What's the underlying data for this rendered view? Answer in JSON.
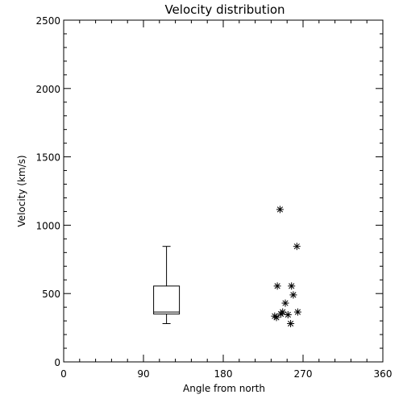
{
  "chart_data": {
    "type": "scatter",
    "title": "Velocity distribution",
    "xlabel": "Angle from north",
    "ylabel": "Velocity (km/s)",
    "xlim": [
      0,
      360
    ],
    "ylim": [
      0,
      2500
    ],
    "xticks": [
      0,
      90,
      180,
      270,
      360
    ],
    "yticks": [
      0,
      500,
      1000,
      1500,
      2000,
      2500
    ],
    "x_minor_step": 18,
    "y_minor_step": 100,
    "grid": false,
    "box": {
      "x": 116,
      "whisker_low": 280,
      "q1": 350,
      "median": 365,
      "q3": 555,
      "whisker_high": 845
    },
    "series": [
      {
        "marker": "asterisk",
        "points": [
          [
            244,
            1115
          ],
          [
            263,
            845
          ],
          [
            241,
            555
          ],
          [
            257,
            555
          ],
          [
            259,
            490
          ],
          [
            250,
            430
          ],
          [
            247,
            365
          ],
          [
            264,
            365
          ],
          [
            245,
            350
          ],
          [
            253,
            345
          ],
          [
            240,
            325
          ],
          [
            238,
            335
          ],
          [
            256,
            280
          ]
        ]
      }
    ],
    "colors": {
      "axis": "#000000",
      "marks": "#000000",
      "background": "#ffffff"
    }
  }
}
